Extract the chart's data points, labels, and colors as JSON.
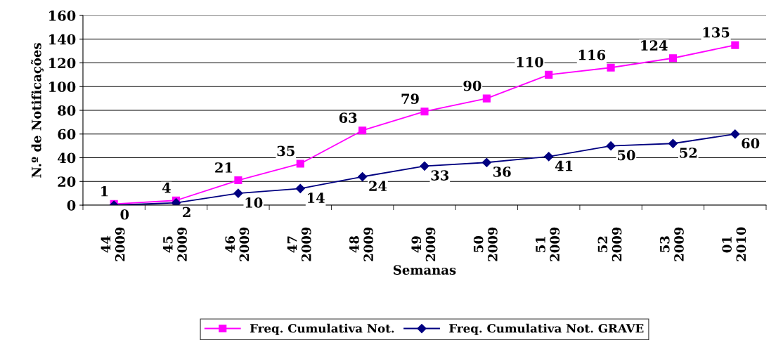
{
  "chart_data": {
    "type": "line",
    "xlabel": "Semanas",
    "ylabel": "N.º de Notificações",
    "categories": [
      "44\n2009",
      "45\n2009",
      "46\n2009",
      "47\n2009",
      "48\n2009",
      "49\n2009",
      "50\n2009",
      "51\n2009",
      "52\n2009",
      "53\n2009",
      "01\n2010"
    ],
    "series": [
      {
        "name": "Freq. Cumulativa Not.",
        "color": "#ff00ff",
        "marker": "square",
        "values": [
          1,
          4,
          21,
          35,
          63,
          79,
          90,
          110,
          116,
          124,
          135
        ]
      },
      {
        "name": "Freq. Cumulativa Not. GRAVE",
        "color": "#000080",
        "marker": "diamond",
        "values": [
          0,
          2,
          10,
          14,
          24,
          33,
          36,
          41,
          50,
          52,
          60
        ]
      }
    ],
    "ylim": [
      0,
      160
    ],
    "yticks": [
      0,
      20,
      40,
      60,
      80,
      100,
      120,
      140,
      160
    ],
    "grid": "y",
    "legend": "bottom",
    "data_labels": true,
    "line_style": "solid"
  }
}
